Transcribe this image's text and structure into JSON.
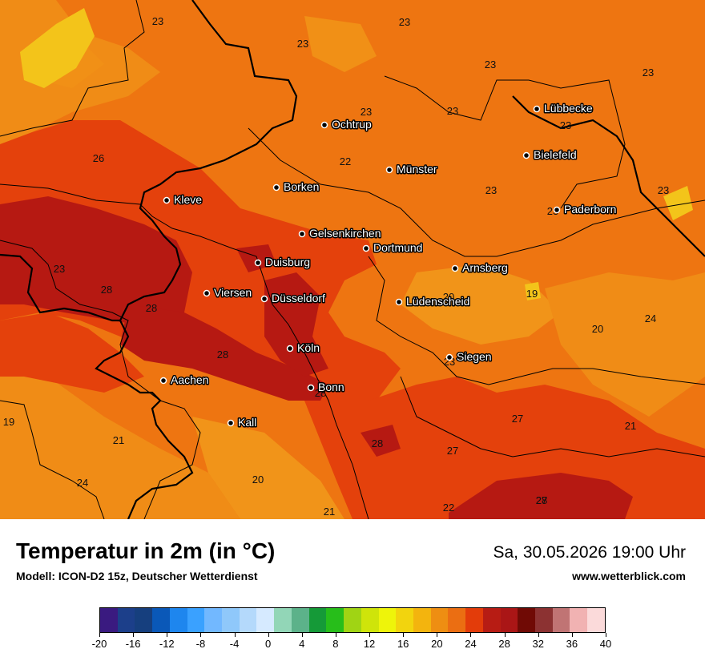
{
  "map": {
    "cities": [
      {
        "name": "Ochtrup"
      },
      {
        "name": "Lübbecke"
      },
      {
        "name": "Bielefeld"
      },
      {
        "name": "Münster"
      },
      {
        "name": "Borken"
      },
      {
        "name": "Kleve"
      },
      {
        "name": "Paderborn"
      },
      {
        "name": "Gelsenkirchen"
      },
      {
        "name": "Dortmund"
      },
      {
        "name": "Duisburg"
      },
      {
        "name": "Arnsberg"
      },
      {
        "name": "Viersen"
      },
      {
        "name": "Düsseldorf"
      },
      {
        "name": "Lüdenscheid"
      },
      {
        "name": "Köln"
      },
      {
        "name": "Siegen"
      },
      {
        "name": "Aachen"
      },
      {
        "name": "Bonn"
      },
      {
        "name": "Kall"
      }
    ],
    "temperature_labels": [
      "23",
      "23",
      "23",
      "23",
      "23",
      "23",
      "23",
      "23",
      "23",
      "23",
      "22",
      "26",
      "23",
      "23",
      "28",
      "28",
      "28",
      "20",
      "19",
      "20",
      "24",
      "28",
      "23",
      "27",
      "19",
      "21",
      "27",
      "21",
      "28",
      "27",
      "24",
      "20",
      "21",
      "22",
      "28"
    ]
  },
  "footer": {
    "title": "Temperatur in 2m (in °C)",
    "subtitle": "Modell: ICON-D2 15z, Deutscher Wetterdienst",
    "datetime": "Sa, 30.05.2026 19:00 Uhr",
    "website": "www.wetterblick.com"
  },
  "legend": {
    "colors": [
      "#3a1a80",
      "#1c3f8a",
      "#163f7e",
      "#0a58b8",
      "#1e86ee",
      "#3aa1ff",
      "#72b8ff",
      "#8fc8fa",
      "#b4d9fb",
      "#d6eaff",
      "#92d6b7",
      "#5cb28a",
      "#159a38",
      "#27be1a",
      "#a0d414",
      "#cfe40a",
      "#eef40a",
      "#f2d40e",
      "#f3b40e",
      "#ee8e12",
      "#eb6e12",
      "#e33c0a",
      "#b71c14",
      "#aa1616",
      "#700a05",
      "#8c3232",
      "#c07474",
      "#f1b2b2",
      "#fbdada"
    ],
    "tick_labels": [
      "-20",
      "-16",
      "-12",
      "-8",
      "-4",
      "0",
      "4",
      "8",
      "12",
      "16",
      "20",
      "24",
      "28",
      "32",
      "36",
      "40"
    ]
  }
}
